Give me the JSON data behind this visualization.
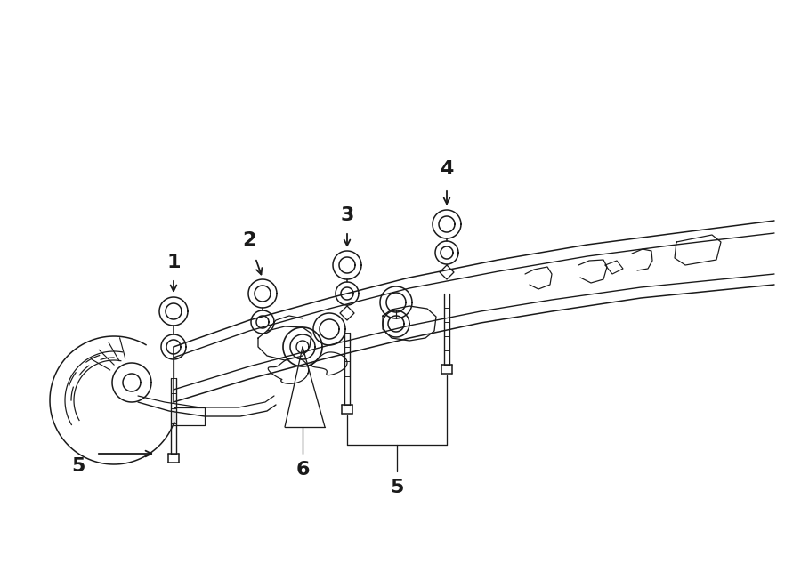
{
  "bg_color": "#ffffff",
  "line_color": "#1a1a1a",
  "lw": 1.1,
  "fig_width": 9.0,
  "fig_height": 6.61,
  "font_size": 16,
  "font_weight": "bold"
}
